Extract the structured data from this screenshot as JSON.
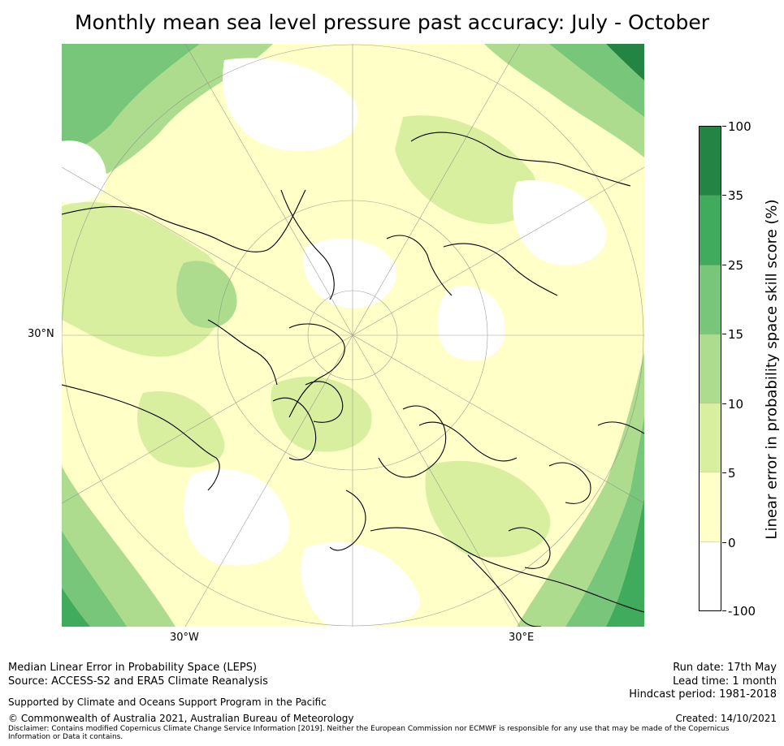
{
  "title": "Monthly mean sea level pressure past accuracy: July - October",
  "map": {
    "projection": "North polar stereographic",
    "lat_labels": [
      "30°N"
    ],
    "lon_labels": [
      "30°W",
      "30°E"
    ],
    "fill_colors": {
      "band_0_5": "#ffffc8",
      "band_5_10": "#d9efa0",
      "band_10_15": "#aedc8e",
      "band_15_25": "#78c679",
      "band_25_35": "#41ab5d",
      "band_35_100": "#238443",
      "no_skill": "#ffffff"
    }
  },
  "colorbar": {
    "title": "Linear error in probability space skill score (%)",
    "ticks": [
      "100",
      "35",
      "25",
      "15",
      "10",
      "5",
      "0",
      "-100"
    ],
    "colors": [
      "#238443",
      "#41ab5d",
      "#78c679",
      "#aedc8e",
      "#d9efa0",
      "#ffffc8",
      "#ffffff"
    ]
  },
  "footer": {
    "left_line1": "Median Linear Error in Probability Space (LEPS)",
    "left_line2": "Source: ACCESS-S2 and ERA5 Climate Reanalysis",
    "supported": "Supported by Climate and Oceans Support Program in the Pacific",
    "copyright": "© Commonwealth of Australia 2021, Australian Bureau of Meteorology",
    "disclaimer": "Disclaimer: Contains modified Copernicus Climate Change Service Information [2019]. Neither the European Commission nor ECMWF is responsible for any use that may be made of the Copernicus Information or Data it contains.",
    "run_date": "Run date: 17th May",
    "lead_time": "Lead time: 1 month",
    "hindcast": "Hindcast period: 1981-2018",
    "created": "Created: 14/10/2021"
  }
}
